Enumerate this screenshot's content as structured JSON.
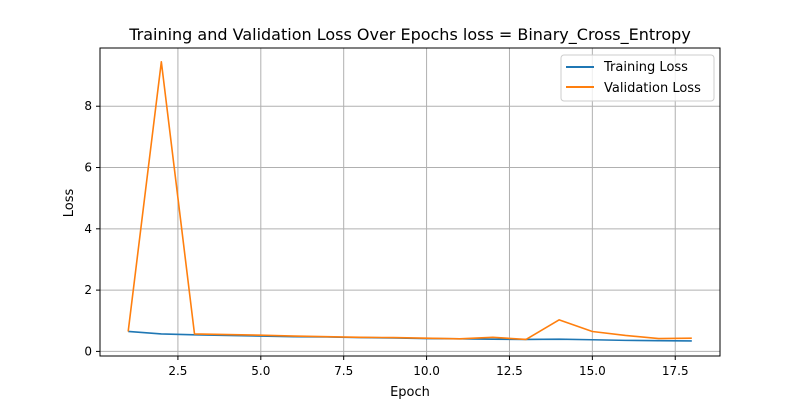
{
  "chart_data": {
    "type": "line",
    "title": "Training and Validation Loss Over Epochs loss = Binary_Cross_Entropy",
    "xlabel": "Epoch",
    "ylabel": "Loss",
    "xlim": [
      0.15,
      18.85
    ],
    "ylim": [
      -0.15,
      9.9
    ],
    "xticks": [
      2.5,
      5.0,
      7.5,
      10.0,
      12.5,
      15.0,
      17.5
    ],
    "xtick_labels": [
      "2.5",
      "5.0",
      "7.5",
      "10.0",
      "12.5",
      "15.0",
      "17.5"
    ],
    "yticks": [
      0,
      2,
      4,
      6,
      8
    ],
    "ytick_labels": [
      "0",
      "2",
      "4",
      "6",
      "8"
    ],
    "grid": true,
    "legend_position": "top-right",
    "x": [
      1,
      2,
      3,
      4,
      5,
      6,
      7,
      8,
      9,
      10,
      11,
      12,
      13,
      14,
      15,
      16,
      17,
      18
    ],
    "series": [
      {
        "name": "Training Loss",
        "color": "#1f77b4",
        "values": [
          0.65,
          0.57,
          0.54,
          0.52,
          0.5,
          0.48,
          0.47,
          0.45,
          0.44,
          0.42,
          0.41,
          0.4,
          0.39,
          0.4,
          0.38,
          0.36,
          0.35,
          0.34
        ]
      },
      {
        "name": "Validation Loss",
        "color": "#ff7f0e",
        "values": [
          0.65,
          9.45,
          0.57,
          0.55,
          0.53,
          0.5,
          0.48,
          0.46,
          0.45,
          0.43,
          0.41,
          0.46,
          0.39,
          1.03,
          0.65,
          0.52,
          0.42,
          0.43
        ]
      }
    ]
  }
}
